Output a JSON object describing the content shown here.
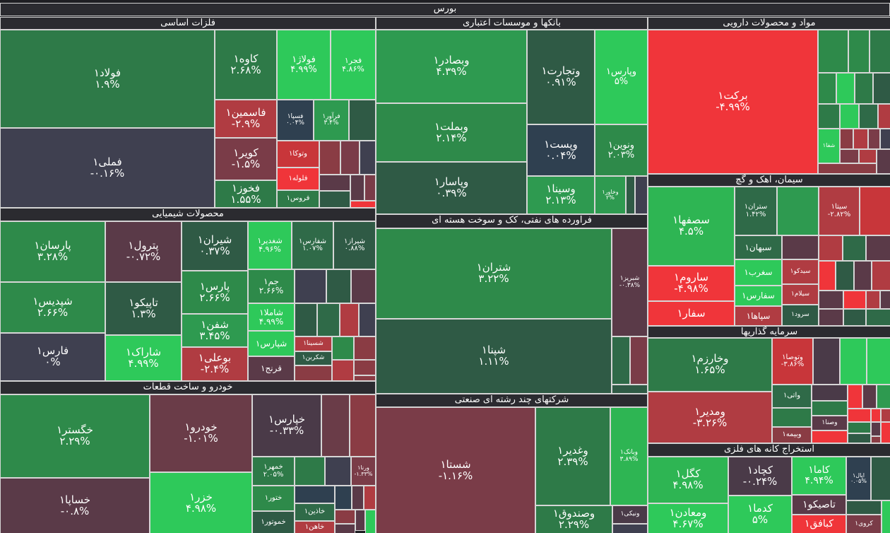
{
  "market": "بورس",
  "colors": {
    "up_max": "#2ec95a",
    "neutral": "#3f4050",
    "down_max": "#f0353a"
  },
  "sectors": [
    {
      "name": "فلزات اساسی",
      "tiles": [
        {
          "name": "فولاد۱",
          "change": "۱.۹%"
        },
        {
          "name": "فملی۱",
          "change": "-۰.۱۶%"
        },
        {
          "name": "کاوه۱",
          "change": "۲.۶۸%"
        },
        {
          "name": "فولاژ۱",
          "change": "۴.۹۹%"
        },
        {
          "name": "فجر۱",
          "change": "۴.۸۶%"
        },
        {
          "name": "فاسمین۱",
          "change": "-۲.۹%"
        },
        {
          "name": "کویر۱",
          "change": "-۱.۵%"
        },
        {
          "name": "فخوز۱",
          "change": "۱.۵۵%"
        },
        {
          "name": "فسپا۱",
          "change": "۰.۰۴%"
        },
        {
          "name": "فرآور۱",
          "change": "۳.۴%"
        },
        {
          "name": "وتوکا۱"
        },
        {
          "name": "فلوله۱"
        },
        {
          "name": "فروس۱"
        }
      ]
    },
    {
      "name": "محصولات شیمیایی",
      "tiles": [
        {
          "name": "پارسان۱",
          "change": "۳.۲۸%"
        },
        {
          "name": "شپدیس۱",
          "change": "۲.۶۶%"
        },
        {
          "name": "فارس۱",
          "change": "۰%"
        },
        {
          "name": "پترول۱",
          "change": "-۰.۷۲%"
        },
        {
          "name": "تاپیکو۱",
          "change": "۱.۳%"
        },
        {
          "name": "شاراک۱",
          "change": "۴.۹۹%"
        },
        {
          "name": "شیران۱",
          "change": "۰.۳۷%"
        },
        {
          "name": "پارس۱",
          "change": "۲.۶۶%"
        },
        {
          "name": "شفن۱",
          "change": "۳.۴۵%"
        },
        {
          "name": "بوعلی۱",
          "change": "-۲.۴%"
        },
        {
          "name": "شغدیر۱",
          "change": "۴.۹۶%"
        },
        {
          "name": "جم۱",
          "change": "۲.۶۶%"
        },
        {
          "name": "شاملا۱",
          "change": "۴.۹۹%"
        },
        {
          "name": "شپارس۱"
        },
        {
          "name": "قرنج۱"
        },
        {
          "name": "شفارس۱",
          "change": "۱.۰۷%"
        },
        {
          "name": "شیراز۱",
          "change": "۰.۸۸%"
        },
        {
          "name": "شسینا۱"
        },
        {
          "name": "شکربن۱"
        }
      ]
    },
    {
      "name": "خودرو و ساخت قطعات",
      "tiles": [
        {
          "name": "خگستر۱",
          "change": "۲.۲۹%"
        },
        {
          "name": "خساپا۱",
          "change": "-۰.۸%"
        },
        {
          "name": "خودرو۱",
          "change": "-۱.۰۱%"
        },
        {
          "name": "خزر۱",
          "change": "۴.۹۸%"
        },
        {
          "name": "خپارس۱",
          "change": "-۰.۳۳%"
        },
        {
          "name": "خمهر۱",
          "change": "۲.۰۵%"
        },
        {
          "name": "ختور۱"
        },
        {
          "name": "خموتور۱"
        },
        {
          "name": "ورنا۱",
          "change": "-۱.۳۳%"
        },
        {
          "name": "خاذین۱"
        },
        {
          "name": "خاهن۱"
        }
      ]
    },
    {
      "name": "بانکها و موسسات اعتباری",
      "tiles": [
        {
          "name": "وبصادر۱",
          "change": "۴.۳۹%"
        },
        {
          "name": "وبملت۱",
          "change": "۲.۱۴%"
        },
        {
          "name": "وپاسار۱",
          "change": "۰.۳۹%"
        },
        {
          "name": "وتجارت۱",
          "change": "۰.۹۱%"
        },
        {
          "name": "وپست۱",
          "change": "۰.۰۴%"
        },
        {
          "name": "وسینا۱",
          "change": "۲.۱۳%"
        },
        {
          "name": "وپارس۱",
          "change": "۵%"
        },
        {
          "name": "ونوین۱",
          "change": "۲.۰۳%"
        },
        {
          "name": "وخاور۱",
          "change": "۲%"
        }
      ]
    },
    {
      "name": "فراورده های نفتی، کک و سوخت هسته ای",
      "tiles": [
        {
          "name": "شتران۱",
          "change": "۳.۲۲%"
        },
        {
          "name": "شپنا۱",
          "change": "۱.۱۱%"
        },
        {
          "name": "شبریز۱",
          "change": "-۰.۳۸%"
        }
      ]
    },
    {
      "name": "شرکتهای چند رشته ای صنعتی",
      "tiles": [
        {
          "name": "شستا۱",
          "change": "-۱.۱۶%"
        },
        {
          "name": "وغدیر۱",
          "change": "۲.۳۹%"
        },
        {
          "name": "وبانک۱",
          "change": "۳.۸۹%"
        },
        {
          "name": "وصندوق۱",
          "change": "۲.۲۹%"
        },
        {
          "name": "ونیکی۱"
        }
      ]
    },
    {
      "name": "مواد و محصولات دارویی",
      "tiles": [
        {
          "name": "برکت۱",
          "change": "-۴.۹۹%"
        },
        {
          "name": "شفا۱"
        }
      ]
    },
    {
      "name": "سیمان، آهک و گچ",
      "tiles": [
        {
          "name": "سصفها۱",
          "change": "۴.۵%"
        },
        {
          "name": "ساروم۱",
          "change": "-۴.۹۸%"
        },
        {
          "name": "سفار۱"
        },
        {
          "name": "ستران۱",
          "change": "۱.۴۲%"
        },
        {
          "name": "سیتا۱",
          "change": "-۲.۸۲%"
        },
        {
          "name": "سبهان۱"
        },
        {
          "name": "سغرب۱"
        },
        {
          "name": "سفارس۱"
        },
        {
          "name": "سپاها۱"
        },
        {
          "name": "سیدکو۱"
        },
        {
          "name": "سیلام۱"
        },
        {
          "name": "سرود۱"
        }
      ]
    },
    {
      "name": "سرمایه گذاریها",
      "tiles": [
        {
          "name": "وخارزم۱",
          "change": "۱.۶۵%"
        },
        {
          "name": "ومدیر۱",
          "change": "-۳.۲۶%"
        },
        {
          "name": "وتوصا۱",
          "change": "-۳.۸۶%"
        },
        {
          "name": "واتی۱"
        },
        {
          "name": "وبیمه۱"
        },
        {
          "name": "وصنا۱"
        }
      ]
    },
    {
      "name": "استخراج کانه های فلزی",
      "tiles": [
        {
          "name": "کگل۱",
          "change": "۴.۹۸%"
        },
        {
          "name": "ومعادن۱",
          "change": "۴.۶۷%"
        },
        {
          "name": "کچاد۱",
          "change": "-۰.۲۴%"
        },
        {
          "name": "کدما۱",
          "change": "۵%"
        },
        {
          "name": "کاما۱",
          "change": "۴.۹۴%"
        },
        {
          "name": "تاصیکو۱"
        },
        {
          "name": "کبافق۱"
        },
        {
          "name": "اپال۱",
          "change": "۰.۰۵%"
        },
        {
          "name": "کروی۱"
        }
      ]
    }
  ]
}
